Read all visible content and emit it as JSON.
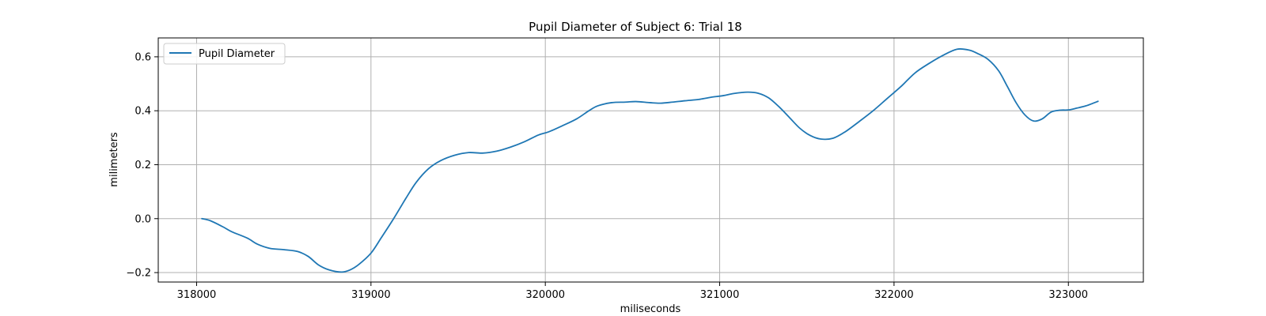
{
  "chart_data": {
    "type": "line",
    "title": "Pupil Diameter of Subject 6: Trial 18",
    "xlabel": "miliseconds",
    "ylabel": "milimeters",
    "xlim": [
      317780,
      323430
    ],
    "ylim": [
      -0.235,
      0.67
    ],
    "xticks": [
      318000,
      319000,
      320000,
      321000,
      322000,
      323000
    ],
    "xtick_labels": [
      "318000",
      "319000",
      "320000",
      "321000",
      "322000",
      "323000"
    ],
    "yticks": [
      -0.2,
      0.0,
      0.2,
      0.4,
      0.6
    ],
    "ytick_labels": [
      "−0.2",
      "0.0",
      "0.2",
      "0.4",
      "0.6"
    ],
    "grid": true,
    "legend_position": "top-left",
    "series": [
      {
        "name": "Pupil Diameter",
        "color": "#1f77b4",
        "x": [
          318030,
          318080,
          318150,
          318200,
          318290,
          318350,
          318420,
          318500,
          318580,
          318640,
          318700,
          318760,
          318830,
          318880,
          318930,
          319000,
          319060,
          319130,
          319200,
          319260,
          319330,
          319400,
          319480,
          319560,
          319640,
          319720,
          319800,
          319880,
          319960,
          320020,
          320100,
          320180,
          320250,
          320300,
          320380,
          320460,
          320520,
          320600,
          320660,
          320730,
          320800,
          320880,
          320950,
          321020,
          321080,
          321160,
          321220,
          321280,
          321340,
          321400,
          321460,
          321520,
          321580,
          321650,
          321720,
          321800,
          321880,
          321960,
          322040,
          322120,
          322200,
          322280,
          322360,
          322430,
          322480,
          322540,
          322600,
          322650,
          322700,
          322750,
          322800,
          322850,
          322900,
          322950,
          323000,
          323050,
          323100,
          323150,
          323170
        ],
        "y": [
          0.0,
          -0.008,
          -0.03,
          -0.048,
          -0.072,
          -0.095,
          -0.11,
          -0.115,
          -0.122,
          -0.14,
          -0.172,
          -0.19,
          -0.198,
          -0.19,
          -0.17,
          -0.128,
          -0.07,
          0.0,
          0.075,
          0.135,
          0.185,
          0.215,
          0.235,
          0.245,
          0.243,
          0.25,
          0.265,
          0.285,
          0.31,
          0.322,
          0.345,
          0.37,
          0.4,
          0.418,
          0.43,
          0.432,
          0.434,
          0.43,
          0.428,
          0.432,
          0.437,
          0.442,
          0.45,
          0.456,
          0.464,
          0.469,
          0.465,
          0.448,
          0.415,
          0.375,
          0.335,
          0.308,
          0.295,
          0.298,
          0.322,
          0.36,
          0.4,
          0.445,
          0.49,
          0.54,
          0.575,
          0.605,
          0.628,
          0.625,
          0.612,
          0.59,
          0.548,
          0.49,
          0.43,
          0.385,
          0.362,
          0.37,
          0.395,
          0.402,
          0.403,
          0.41,
          0.418,
          0.43,
          0.435
        ]
      }
    ]
  }
}
